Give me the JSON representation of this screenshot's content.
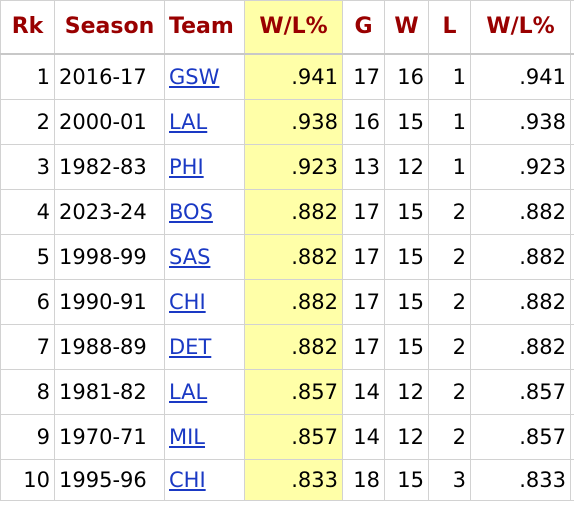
{
  "table": {
    "columns": {
      "rank": "Rk",
      "season": "Season",
      "team": "Team",
      "win_loss_pct": "W/L%",
      "games": "G",
      "wins": "W",
      "losses": "L",
      "win_loss_pct_2": "W/L%"
    },
    "rows": [
      {
        "rank": "1",
        "season": "2016-17",
        "team": "GSW",
        "win_loss_pct": ".941",
        "games": "17",
        "wins": "16",
        "losses": "1",
        "win_loss_pct_2": ".941"
      },
      {
        "rank": "2",
        "season": "2000-01",
        "team": "LAL",
        "win_loss_pct": ".938",
        "games": "16",
        "wins": "15",
        "losses": "1",
        "win_loss_pct_2": ".938"
      },
      {
        "rank": "3",
        "season": "1982-83",
        "team": "PHI",
        "win_loss_pct": ".923",
        "games": "13",
        "wins": "12",
        "losses": "1",
        "win_loss_pct_2": ".923"
      },
      {
        "rank": "4",
        "season": "2023-24",
        "team": "BOS",
        "win_loss_pct": ".882",
        "games": "17",
        "wins": "15",
        "losses": "2",
        "win_loss_pct_2": ".882"
      },
      {
        "rank": "5",
        "season": "1998-99",
        "team": "SAS",
        "win_loss_pct": ".882",
        "games": "17",
        "wins": "15",
        "losses": "2",
        "win_loss_pct_2": ".882"
      },
      {
        "rank": "6",
        "season": "1990-91",
        "team": "CHI",
        "win_loss_pct": ".882",
        "games": "17",
        "wins": "15",
        "losses": "2",
        "win_loss_pct_2": ".882"
      },
      {
        "rank": "7",
        "season": "1988-89",
        "team": "DET",
        "win_loss_pct": ".882",
        "games": "17",
        "wins": "15",
        "losses": "2",
        "win_loss_pct_2": ".882"
      },
      {
        "rank": "8",
        "season": "1981-82",
        "team": "LAL",
        "win_loss_pct": ".857",
        "games": "14",
        "wins": "12",
        "losses": "2",
        "win_loss_pct_2": ".857"
      },
      {
        "rank": "9",
        "season": "1970-71",
        "team": "MIL",
        "win_loss_pct": ".857",
        "games": "14",
        "wins": "12",
        "losses": "2",
        "win_loss_pct_2": ".857"
      },
      {
        "rank": "10",
        "season": "1995-96",
        "team": "CHI",
        "win_loss_pct": ".833",
        "games": "18",
        "wins": "15",
        "losses": "3",
        "win_loss_pct_2": ".833"
      }
    ]
  },
  "colors": {
    "header_text": "#990000",
    "link": "#1a39c4",
    "sorted_column_bg": "#ffffa8",
    "grid": "#d2d2d2"
  }
}
